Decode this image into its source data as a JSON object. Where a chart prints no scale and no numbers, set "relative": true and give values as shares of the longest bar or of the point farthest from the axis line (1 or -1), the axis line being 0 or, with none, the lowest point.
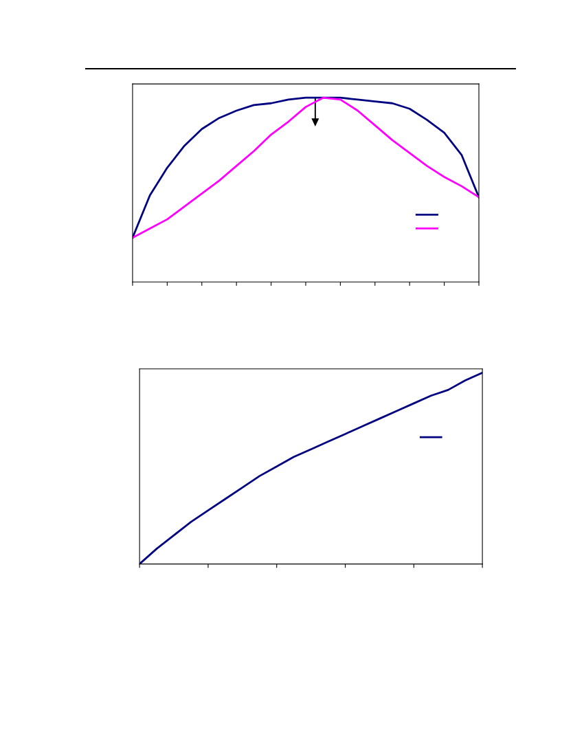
{
  "chart_data": [
    {
      "type": "line",
      "relative": true,
      "categories": [
        null,
        null,
        null,
        null,
        null,
        null,
        null,
        null,
        null,
        null,
        null,
        null,
        null,
        null,
        null,
        null,
        null,
        null,
        null,
        null,
        null
      ],
      "series": [
        {
          "color": "#000080",
          "values": [
            0.24,
            0.47,
            0.62,
            0.74,
            0.83,
            0.89,
            0.93,
            0.96,
            0.97,
            0.99,
            1.0,
            1.0,
            1.0,
            0.99,
            0.98,
            0.97,
            0.94,
            0.88,
            0.81,
            0.69,
            0.46
          ]
        },
        {
          "color": "#ff00ff",
          "values": [
            0.24,
            0.29,
            0.34,
            0.41,
            0.48,
            0.55,
            0.63,
            0.71,
            0.8,
            0.87,
            0.95,
            1.0,
            0.99,
            0.93,
            0.85,
            0.77,
            0.7,
            0.63,
            0.57,
            0.52,
            0.46
          ]
        }
      ]
    },
    {
      "type": "line",
      "relative": true,
      "categories": [
        null,
        null,
        null,
        null,
        null,
        null,
        null,
        null,
        null,
        null,
        null,
        null,
        null,
        null,
        null,
        null,
        null,
        null,
        null,
        null,
        null
      ],
      "series": [
        {
          "color": "#000080",
          "values": [
            0,
            0.08,
            0.15,
            0.22,
            0.28,
            0.34,
            0.4,
            0.46,
            0.51,
            0.56,
            0.6,
            0.64,
            0.68,
            0.72,
            0.76,
            0.8,
            0.84,
            0.88,
            0.91,
            0.96,
            1.0
          ]
        }
      ]
    }
  ]
}
